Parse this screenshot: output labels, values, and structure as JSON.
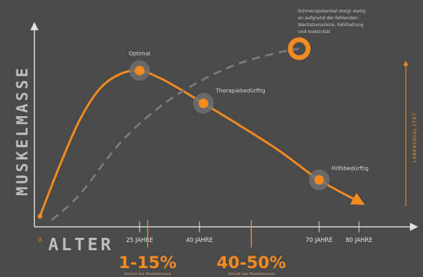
{
  "chart_data": {
    "type": "line",
    "ylabel": "MUSKELMASSE",
    "xlabel": "ALTER",
    "x_ticks": [
      {
        "label": "0",
        "x": 0
      },
      {
        "label": "25 JAHRE",
        "x": 25
      },
      {
        "label": "40 JAHRE",
        "x": 40
      },
      {
        "label": "70 JAHRE",
        "x": 70
      },
      {
        "label": "80 JAHRE",
        "x": 80
      }
    ],
    "xlim": [
      0,
      90
    ],
    "ylim": [
      0,
      100
    ],
    "series": [
      {
        "style": "solid",
        "color": "#f28a22",
        "x": [
          0,
          5,
          10,
          15,
          20,
          25,
          30,
          35,
          41,
          50,
          60,
          70,
          80
        ],
        "y": [
          2,
          30,
          55,
          72,
          80,
          82,
          78,
          72,
          64,
          52,
          38,
          22,
          10
        ]
      },
      {
        "style": "dashed",
        "color": "#7a7a7a",
        "x": [
          3,
          10,
          20,
          30,
          40,
          50,
          60,
          65
        ],
        "y": [
          0,
          14,
          42,
          62,
          76,
          86,
          92,
          94
        ]
      }
    ],
    "markers": [
      {
        "label": "Optimal",
        "x": 25,
        "y": 82
      },
      {
        "label": "Therapiebedürftig",
        "x": 41,
        "y": 64
      },
      {
        "label": "Hilfsbedürftig",
        "x": 70,
        "y": 22
      }
    ],
    "ring_marker": {
      "x": 65,
      "y": 94
    },
    "note_lines": [
      "Schmerzpotential steigt stetig",
      "an aufgrund der fehlenden",
      "Wachstumsreize, Fehlhaltung",
      "und Inaktivität"
    ],
    "right_axis_label": "LEBENSQUALITÄT",
    "ranges": [
      {
        "x": 27,
        "value": "1-15%",
        "caption": "Verlust der Muskelmasse"
      },
      {
        "x": 53,
        "value": "40-50%",
        "caption": "Verlust der Muskelmasse"
      }
    ]
  }
}
